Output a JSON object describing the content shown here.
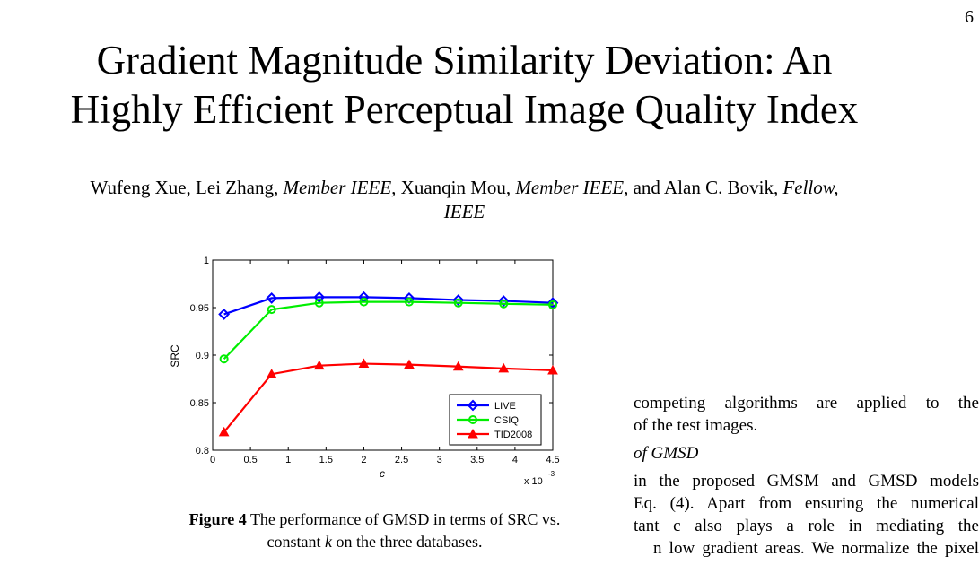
{
  "page": {
    "number": "6"
  },
  "paper": {
    "title_line1": "Gradient Magnitude Similarity Deviation: An",
    "title_line2": "Highly Efficient Perceptual Image Quality Index",
    "authors": {
      "a1": "Wufeng Xue, Lei Zhang, ",
      "a1_role": "Member IEEE,",
      "a2": " Xuanqin Mou, ",
      "a2_role": "Member IEEE,",
      "a3": " and Alan C. Bovik, ",
      "a3_role": "Fellow,",
      "a3_role2": "IEEE"
    }
  },
  "figure": {
    "caption_label": "Figure 4",
    "caption_text": " The performance of GMSD in terms of SRC vs.",
    "caption_line2_a": "constant ",
    "caption_line2_k": "k",
    "caption_line2_b": " on the three databases."
  },
  "chart_data": {
    "type": "line",
    "title": "",
    "xlabel": "c",
    "ylabel": "SRC",
    "x_exponent_label": "x 10",
    "x_exponent": "-3",
    "xlim": [
      0,
      4.5
    ],
    "ylim": [
      0.8,
      1
    ],
    "xticks": [
      "0",
      "0.5",
      "1",
      "1.5",
      "2",
      "2.5",
      "3",
      "3.5",
      "4",
      "4.5"
    ],
    "yticks": [
      "0.8",
      "0.85",
      "0.9",
      "0.95",
      "1"
    ],
    "x": [
      0.15,
      0.78,
      1.41,
      2.0,
      2.6,
      3.25,
      3.85,
      4.5
    ],
    "series": [
      {
        "name": "LIVE",
        "color": "#0000ff",
        "marker": "diamond",
        "values": [
          0.943,
          0.96,
          0.961,
          0.961,
          0.96,
          0.958,
          0.957,
          0.955
        ]
      },
      {
        "name": "CSIQ",
        "color": "#00ee00",
        "marker": "circle",
        "values": [
          0.896,
          0.948,
          0.955,
          0.956,
          0.956,
          0.955,
          0.954,
          0.953
        ]
      },
      {
        "name": "TID2008",
        "color": "#ff0000",
        "marker": "triangle",
        "values": [
          0.819,
          0.88,
          0.889,
          0.891,
          0.89,
          0.888,
          0.886,
          0.884
        ]
      }
    ],
    "legend": "bottom-right",
    "grid": false
  },
  "body_text": {
    "line1": "competing algorithms are applied to the",
    "line2": "of the test images.",
    "heading": "of GMSD",
    "line3": "in the proposed GMSM and GMSD models",
    "line4": "Eq. (4). Apart from ensuring the numerical",
    "line5": "tant c also plays a role in mediating the",
    "line6": "n low gradient areas. We normalize the pixel"
  }
}
